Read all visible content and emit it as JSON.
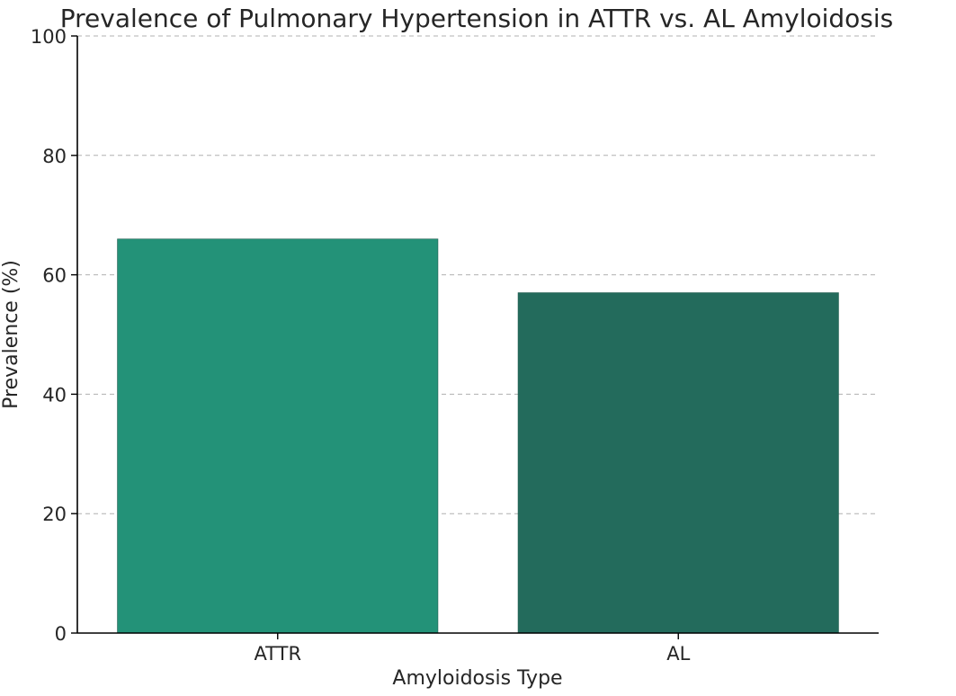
{
  "chart_data": {
    "type": "bar",
    "title": "Prevalence of Pulmonary Hypertension in ATTR vs. AL Amyloidosis",
    "xlabel": "Amyloidosis Type",
    "ylabel": "Prevalence (%)",
    "categories": [
      "ATTR",
      "AL"
    ],
    "values": [
      66,
      57
    ],
    "colors": [
      "#239278",
      "#236b5c"
    ],
    "ylim": [
      0,
      100
    ],
    "yticks": [
      0,
      20,
      40,
      60,
      80,
      100
    ],
    "grid": "y-dashed",
    "legend": "none"
  }
}
